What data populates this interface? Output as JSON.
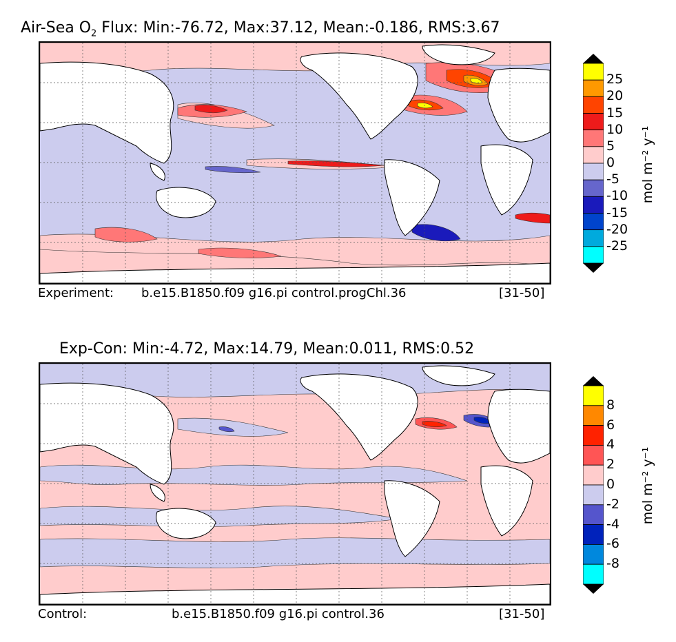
{
  "panels": [
    {
      "title_prefix": "Air-Sea O",
      "title_sub": "2",
      "title_suffix": " Flux: Min:-76.72, Max:37.12, Mean:-0.186, RMS:3.67",
      "footer_left": "Experiment:",
      "footer_center": "b.e15.B1850.f09 g16.pi control.progChl.36",
      "footer_right": "[31-50]",
      "colorbar": {
        "ticks": [
          "25",
          "20",
          "15",
          "10",
          "5",
          "0",
          "-5",
          "-10",
          "-15",
          "-20",
          "-25"
        ],
        "unit_label": "mol m⁻² y⁻¹",
        "colors": [
          "#ffff00",
          "#ff9900",
          "#ff4400",
          "#ee1b1b",
          "#ff7777",
          "#ffcccc",
          "#ccccee",
          "#6666cc",
          "#1a1abb",
          "#0044cc",
          "#00aadd",
          "#00ffff"
        ],
        "over_color": "#000000",
        "under_color": "#000000"
      }
    },
    {
      "title_prefix": "Exp-Con: Min:-4.72, Max:14.79, Mean:0.011, RMS:0.52",
      "title_sub": "",
      "title_suffix": "",
      "footer_left": "Control:",
      "footer_center": "b.e15.B1850.f09 g16.pi control.36",
      "footer_right": "[31-50]",
      "colorbar": {
        "ticks": [
          "8",
          "6",
          "4",
          "2",
          "0",
          "-2",
          "-4",
          "-6",
          "-8"
        ],
        "unit_label": "mol m⁻² y⁻¹",
        "colors": [
          "#ffff00",
          "#ff8800",
          "#ff2200",
          "#ff5555",
          "#ffcccc",
          "#ccccee",
          "#5555cc",
          "#0022bb",
          "#0088dd",
          "#00ffff"
        ],
        "over_color": "#000000",
        "under_color": "#000000"
      }
    }
  ]
}
